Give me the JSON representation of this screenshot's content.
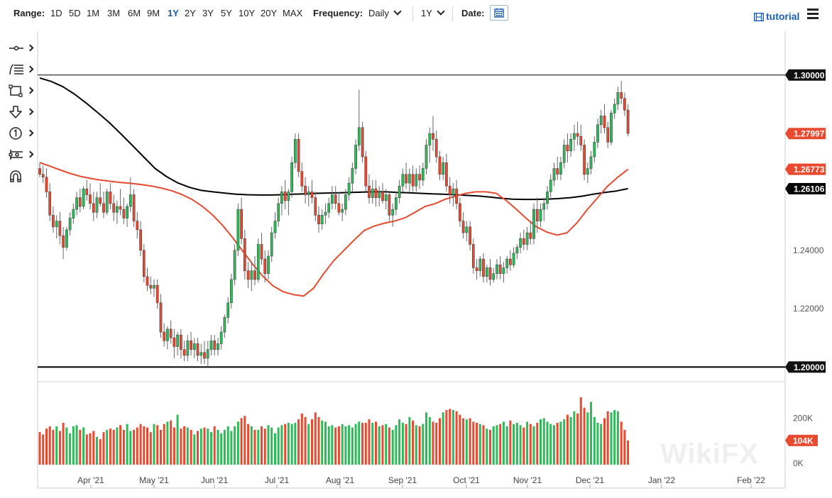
{
  "toolbar": {
    "range_label": "Range:",
    "ranges": [
      "1D",
      "5D",
      "1M",
      "3M",
      "6M",
      "9M",
      "1Y",
      "2Y",
      "3Y",
      "5Y",
      "10Y",
      "20Y",
      "MAX"
    ],
    "active_range": "1Y",
    "frequency_label": "Frequency:",
    "frequency_value": "Daily",
    "period_value": "1Y",
    "date_label": "Date:",
    "tutorial_label": "tutorial",
    "icons": {
      "date": "calendar-icon",
      "tutorial": "film-icon",
      "menu": "hamburger-menu-icon"
    }
  },
  "sidebar": {
    "tools": [
      {
        "name": "line-tool-icon"
      },
      {
        "name": "fibonacci-tool-icon"
      },
      {
        "name": "rectangle-tool-icon"
      },
      {
        "name": "arrow-down-tool-icon"
      },
      {
        "name": "annotation-tool-icon"
      },
      {
        "name": "measure-tool-icon"
      },
      {
        "name": "magnet-tool-icon"
      }
    ]
  },
  "watermark": "WikiFX",
  "chart_data": {
    "type": "candlestick",
    "x_labels": [
      "Apr '21",
      "May '21",
      "Jun '21",
      "Jul '21",
      "Aug '21",
      "Sep '21",
      "Oct '21",
      "Nov '21",
      "Dec '21",
      "Jan '22",
      "Feb '22"
    ],
    "price_axis": {
      "ticks": [
        "1.24000",
        "1.22000"
      ],
      "range": [
        1.195,
        1.315
      ]
    },
    "horizontal_lines": [
      {
        "value": 1.3,
        "label": "1.30000",
        "color": "#000000"
      },
      {
        "value": 1.2,
        "label": "1.20000",
        "color": "#000000"
      }
    ],
    "last_labels": [
      {
        "label": "1.27997",
        "value": 1.27997,
        "color": "#e8492f",
        "series": "price"
      },
      {
        "label": "1.26773",
        "value": 1.26773,
        "color": "#e8492f",
        "series": "ma50"
      },
      {
        "label": "1.26106",
        "value": 1.26106,
        "color": "#000000",
        "series": "ma200"
      }
    ],
    "candles": [
      [
        1.268,
        1.27,
        1.265,
        1.266
      ],
      [
        1.266,
        1.269,
        1.263,
        1.265
      ],
      [
        1.265,
        1.268,
        1.258,
        1.26
      ],
      [
        1.26,
        1.263,
        1.25,
        1.252
      ],
      [
        1.252,
        1.255,
        1.246,
        1.248
      ],
      [
        1.248,
        1.252,
        1.244,
        1.25
      ],
      [
        1.25,
        1.253,
        1.242,
        1.245
      ],
      [
        1.245,
        1.248,
        1.237,
        1.241
      ],
      [
        1.241,
        1.248,
        1.24,
        1.247
      ],
      [
        1.247,
        1.253,
        1.245,
        1.251
      ],
      [
        1.251,
        1.256,
        1.249,
        1.254
      ],
      [
        1.254,
        1.26,
        1.252,
        1.258
      ],
      [
        1.258,
        1.261,
        1.253,
        1.255
      ],
      [
        1.255,
        1.262,
        1.254,
        1.261
      ],
      [
        1.261,
        1.264,
        1.257,
        1.259
      ],
      [
        1.259,
        1.263,
        1.254,
        1.256
      ],
      [
        1.256,
        1.26,
        1.25,
        1.253
      ],
      [
        1.253,
        1.26,
        1.251,
        1.258
      ],
      [
        1.258,
        1.263,
        1.255,
        1.256
      ],
      [
        1.256,
        1.26,
        1.251,
        1.253
      ],
      [
        1.253,
        1.261,
        1.252,
        1.26
      ],
      [
        1.26,
        1.263,
        1.254,
        1.256
      ],
      [
        1.256,
        1.259,
        1.25,
        1.253
      ],
      [
        1.253,
        1.257,
        1.249,
        1.255
      ],
      [
        1.255,
        1.261,
        1.252,
        1.254
      ],
      [
        1.254,
        1.258,
        1.249,
        1.251
      ],
      [
        1.251,
        1.256,
        1.248,
        1.255
      ],
      [
        1.255,
        1.265,
        1.253,
        1.259
      ],
      [
        1.259,
        1.261,
        1.248,
        1.25
      ],
      [
        1.25,
        1.253,
        1.244,
        1.247
      ],
      [
        1.247,
        1.25,
        1.238,
        1.24
      ],
      [
        1.24,
        1.242,
        1.229,
        1.231
      ],
      [
        1.231,
        1.234,
        1.226,
        1.228
      ],
      [
        1.228,
        1.231,
        1.225,
        1.227
      ],
      [
        1.227,
        1.23,
        1.224,
        1.228
      ],
      [
        1.228,
        1.23,
        1.22,
        1.222
      ],
      [
        1.222,
        1.225,
        1.21,
        1.212
      ],
      [
        1.212,
        1.215,
        1.207,
        1.209
      ],
      [
        1.209,
        1.214,
        1.206,
        1.213
      ],
      [
        1.213,
        1.216,
        1.208,
        1.21
      ],
      [
        1.21,
        1.213,
        1.203,
        1.207
      ],
      [
        1.207,
        1.212,
        1.204,
        1.211
      ],
      [
        1.211,
        1.213,
        1.203,
        1.206
      ],
      [
        1.206,
        1.209,
        1.202,
        1.204
      ],
      [
        1.204,
        1.211,
        1.202,
        1.209
      ],
      [
        1.209,
        1.212,
        1.204,
        1.206
      ],
      [
        1.206,
        1.21,
        1.203,
        1.208
      ],
      [
        1.208,
        1.21,
        1.202,
        1.204
      ],
      [
        1.204,
        1.208,
        1.201,
        1.205
      ],
      [
        1.205,
        1.209,
        1.201,
        1.203
      ],
      [
        1.203,
        1.209,
        1.2,
        1.206
      ],
      [
        1.206,
        1.211,
        1.204,
        1.209
      ],
      [
        1.209,
        1.211,
        1.204,
        1.206
      ],
      [
        1.206,
        1.21,
        1.204,
        1.208
      ],
      [
        1.208,
        1.214,
        1.206,
        1.212
      ],
      [
        1.212,
        1.218,
        1.21,
        1.217
      ],
      [
        1.217,
        1.224,
        1.215,
        1.222
      ],
      [
        1.222,
        1.232,
        1.22,
        1.23
      ],
      [
        1.23,
        1.242,
        1.228,
        1.24
      ],
      [
        1.24,
        1.256,
        1.238,
        1.254
      ],
      [
        1.254,
        1.258,
        1.242,
        1.244
      ],
      [
        1.244,
        1.247,
        1.23,
        1.233
      ],
      [
        1.233,
        1.236,
        1.227,
        1.23
      ],
      [
        1.23,
        1.236,
        1.226,
        1.233
      ],
      [
        1.233,
        1.238,
        1.228,
        1.23
      ],
      [
        1.23,
        1.244,
        1.229,
        1.242
      ],
      [
        1.242,
        1.246,
        1.235,
        1.237
      ],
      [
        1.237,
        1.24,
        1.229,
        1.232
      ],
      [
        1.232,
        1.24,
        1.23,
        1.238
      ],
      [
        1.238,
        1.248,
        1.236,
        1.246
      ],
      [
        1.246,
        1.253,
        1.244,
        1.25
      ],
      [
        1.25,
        1.258,
        1.248,
        1.256
      ],
      [
        1.256,
        1.262,
        1.252,
        1.26
      ],
      [
        1.26,
        1.264,
        1.254,
        1.257
      ],
      [
        1.257,
        1.261,
        1.252,
        1.26
      ],
      [
        1.26,
        1.272,
        1.258,
        1.27
      ],
      [
        1.27,
        1.28,
        1.268,
        1.278
      ],
      [
        1.278,
        1.28,
        1.265,
        1.267
      ],
      [
        1.267,
        1.27,
        1.26,
        1.262
      ],
      [
        1.262,
        1.265,
        1.256,
        1.259
      ],
      [
        1.259,
        1.262,
        1.255,
        1.26
      ],
      [
        1.26,
        1.264,
        1.256,
        1.258
      ],
      [
        1.258,
        1.26,
        1.25,
        1.252
      ],
      [
        1.252,
        1.255,
        1.246,
        1.249
      ],
      [
        1.249,
        1.254,
        1.247,
        1.252
      ],
      [
        1.252,
        1.256,
        1.249,
        1.253
      ],
      [
        1.253,
        1.258,
        1.251,
        1.256
      ],
      [
        1.256,
        1.262,
        1.254,
        1.259
      ],
      [
        1.259,
        1.262,
        1.254,
        1.256
      ],
      [
        1.256,
        1.26,
        1.252,
        1.253
      ],
      [
        1.253,
        1.256,
        1.25,
        1.254
      ],
      [
        1.254,
        1.261,
        1.252,
        1.259
      ],
      [
        1.259,
        1.265,
        1.257,
        1.263
      ],
      [
        1.263,
        1.27,
        1.26,
        1.268
      ],
      [
        1.268,
        1.278,
        1.266,
        1.276
      ],
      [
        1.276,
        1.295,
        1.274,
        1.282
      ],
      [
        1.282,
        1.284,
        1.27,
        1.272
      ],
      [
        1.272,
        1.274,
        1.26,
        1.262
      ],
      [
        1.262,
        1.266,
        1.256,
        1.258
      ],
      [
        1.258,
        1.264,
        1.256,
        1.261
      ],
      [
        1.261,
        1.264,
        1.255,
        1.258
      ],
      [
        1.258,
        1.262,
        1.255,
        1.26
      ],
      [
        1.26,
        1.263,
        1.256,
        1.257
      ],
      [
        1.257,
        1.261,
        1.254,
        1.259
      ],
      [
        1.259,
        1.26,
        1.25,
        1.252
      ],
      [
        1.252,
        1.256,
        1.248,
        1.254
      ],
      [
        1.254,
        1.26,
        1.252,
        1.258
      ],
      [
        1.258,
        1.264,
        1.256,
        1.262
      ],
      [
        1.262,
        1.268,
        1.26,
        1.266
      ],
      [
        1.266,
        1.27,
        1.261,
        1.263
      ],
      [
        1.263,
        1.268,
        1.26,
        1.266
      ],
      [
        1.266,
        1.269,
        1.26,
        1.262
      ],
      [
        1.262,
        1.268,
        1.26,
        1.266
      ],
      [
        1.266,
        1.269,
        1.261,
        1.264
      ],
      [
        1.264,
        1.27,
        1.262,
        1.268
      ],
      [
        1.268,
        1.278,
        1.266,
        1.276
      ],
      [
        1.276,
        1.282,
        1.27,
        1.28
      ],
      [
        1.28,
        1.286,
        1.274,
        1.278
      ],
      [
        1.278,
        1.281,
        1.27,
        1.272
      ],
      [
        1.272,
        1.274,
        1.264,
        1.266
      ],
      [
        1.266,
        1.272,
        1.264,
        1.27
      ],
      [
        1.27,
        1.273,
        1.26,
        1.262
      ],
      [
        1.262,
        1.265,
        1.256,
        1.259
      ],
      [
        1.259,
        1.263,
        1.255,
        1.261
      ],
      [
        1.261,
        1.264,
        1.254,
        1.256
      ],
      [
        1.256,
        1.258,
        1.248,
        1.25
      ],
      [
        1.25,
        1.253,
        1.244,
        1.246
      ],
      [
        1.246,
        1.25,
        1.243,
        1.248
      ],
      [
        1.248,
        1.25,
        1.24,
        1.242
      ],
      [
        1.242,
        1.244,
        1.232,
        1.234
      ],
      [
        1.234,
        1.237,
        1.23,
        1.233
      ],
      [
        1.233,
        1.238,
        1.231,
        1.237
      ],
      [
        1.237,
        1.239,
        1.229,
        1.231
      ],
      [
        1.231,
        1.235,
        1.229,
        1.234
      ],
      [
        1.234,
        1.237,
        1.228,
        1.23
      ],
      [
        1.23,
        1.234,
        1.229,
        1.232
      ],
      [
        1.232,
        1.237,
        1.23,
        1.235
      ],
      [
        1.235,
        1.238,
        1.23,
        1.232
      ],
      [
        1.232,
        1.236,
        1.229,
        1.234
      ],
      [
        1.234,
        1.238,
        1.232,
        1.237
      ],
      [
        1.237,
        1.24,
        1.233,
        1.235
      ],
      [
        1.235,
        1.241,
        1.234,
        1.239
      ],
      [
        1.239,
        1.242,
        1.237,
        1.241
      ],
      [
        1.241,
        1.246,
        1.239,
        1.244
      ],
      [
        1.244,
        1.247,
        1.24,
        1.242
      ],
      [
        1.242,
        1.248,
        1.24,
        1.246
      ],
      [
        1.246,
        1.25,
        1.242,
        1.244
      ],
      [
        1.244,
        1.256,
        1.242,
        1.254
      ],
      [
        1.254,
        1.258,
        1.246,
        1.25
      ],
      [
        1.25,
        1.256,
        1.248,
        1.254
      ],
      [
        1.254,
        1.258,
        1.25,
        1.256
      ],
      [
        1.256,
        1.262,
        1.254,
        1.26
      ],
      [
        1.26,
        1.266,
        1.258,
        1.264
      ],
      [
        1.264,
        1.27,
        1.262,
        1.268
      ],
      [
        1.268,
        1.272,
        1.264,
        1.266
      ],
      [
        1.266,
        1.272,
        1.264,
        1.27
      ],
      [
        1.27,
        1.278,
        1.268,
        1.276
      ],
      [
        1.276,
        1.28,
        1.27,
        1.274
      ],
      [
        1.274,
        1.28,
        1.272,
        1.278
      ],
      [
        1.278,
        1.283,
        1.274,
        1.28
      ],
      [
        1.28,
        1.284,
        1.276,
        1.279
      ],
      [
        1.279,
        1.283,
        1.274,
        1.276
      ],
      [
        1.276,
        1.278,
        1.264,
        1.266
      ],
      [
        1.266,
        1.27,
        1.263,
        1.268
      ],
      [
        1.268,
        1.274,
        1.266,
        1.272
      ],
      [
        1.272,
        1.279,
        1.27,
        1.277
      ],
      [
        1.277,
        1.285,
        1.275,
        1.283
      ],
      [
        1.283,
        1.288,
        1.28,
        1.286
      ],
      [
        1.286,
        1.29,
        1.28,
        1.282
      ],
      [
        1.282,
        1.284,
        1.275,
        1.277
      ],
      [
        1.277,
        1.288,
        1.276,
        1.287
      ],
      [
        1.287,
        1.292,
        1.285,
        1.29
      ],
      [
        1.29,
        1.296,
        1.288,
        1.294
      ],
      [
        1.294,
        1.298,
        1.29,
        1.292
      ],
      [
        1.292,
        1.294,
        1.286,
        1.288
      ],
      [
        1.288,
        1.29,
        1.279,
        1.28
      ]
    ],
    "ma50": [
      1.27,
      1.2688,
      1.2675,
      1.2663,
      1.2653,
      1.2646,
      1.264,
      1.2636,
      1.2632,
      1.2629,
      1.2625,
      1.262,
      1.2613,
      1.2604,
      1.2591,
      1.2574,
      1.2551,
      1.2522,
      1.2486,
      1.2444,
      1.2398,
      1.2352,
      1.2311,
      1.2278,
      1.2258,
      1.2248,
      1.2243,
      1.227,
      1.232,
      1.2365,
      1.24,
      1.2435,
      1.2468,
      1.2483,
      1.2493,
      1.25,
      1.2511,
      1.253,
      1.255,
      1.256,
      1.2575,
      1.2585,
      1.2595,
      1.26,
      1.26,
      1.2595,
      1.257,
      1.254,
      1.2508,
      1.248,
      1.2462,
      1.2452,
      1.246,
      1.2495,
      1.254,
      1.258,
      1.262,
      1.265,
      1.2677
    ],
    "ma200": [
      1.299,
      1.2978,
      1.296,
      1.2935,
      1.2905,
      1.2872,
      1.2838,
      1.28,
      1.276,
      1.272,
      1.268,
      1.2652,
      1.263,
      1.2615,
      1.2605,
      1.26,
      1.2596,
      1.2592,
      1.259,
      1.2589,
      1.2589,
      1.259,
      1.2592,
      1.2593,
      1.2595,
      1.2596,
      1.2597,
      1.2598,
      1.2599,
      1.26,
      1.26,
      1.2598,
      1.2597,
      1.2595,
      1.2593,
      1.2592,
      1.259,
      1.2588,
      1.2586,
      1.2582,
      1.2578,
      1.2575,
      1.2574,
      1.2574,
      1.2575,
      1.2577,
      1.258,
      1.2585,
      1.2592,
      1.2598,
      1.2603,
      1.2611
    ],
    "volume_axis": {
      "ticks": [
        "200K",
        "0K"
      ],
      "max": 290000,
      "last_label": "104K",
      "last_color": "#e8492f"
    },
    "volumes": [
      140000,
      130000,
      155000,
      165000,
      150000,
      165000,
      145000,
      180000,
      160000,
      135000,
      165000,
      170000,
      150000,
      160000,
      130000,
      135000,
      145000,
      120000,
      110000,
      140000,
      150000,
      155000,
      150000,
      160000,
      170000,
      150000,
      175000,
      145000,
      150000,
      160000,
      175000,
      165000,
      160000,
      140000,
      175000,
      170000,
      150000,
      175000,
      185000,
      190000,
      160000,
      215000,
      155000,
      165000,
      160000,
      150000,
      130000,
      145000,
      155000,
      160000,
      155000,
      140000,
      165000,
      150000,
      135000,
      150000,
      165000,
      145000,
      165000,
      185000,
      200000,
      210000,
      175000,
      165000,
      150000,
      150000,
      165000,
      155000,
      170000,
      160000,
      135000,
      160000,
      170000,
      175000,
      180000,
      175000,
      180000,
      195000,
      220000,
      205000,
      175000,
      195000,
      225000,
      205000,
      190000,
      185000,
      165000,
      170000,
      160000,
      165000,
      175000,
      165000,
      170000,
      160000,
      175000,
      185000,
      180000,
      180000,
      195000,
      180000,
      185000,
      165000,
      170000,
      175000,
      160000,
      150000,
      170000,
      195000,
      180000,
      175000,
      205000,
      190000,
      170000,
      165000,
      175000,
      225000,
      205000,
      185000,
      180000,
      200000,
      225000,
      235000,
      240000,
      235000,
      230000,
      215000,
      200000,
      195000,
      200000,
      185000,
      180000,
      175000,
      170000,
      155000,
      150000,
      165000,
      170000,
      175000,
      185000,
      165000,
      190000,
      175000,
      180000,
      170000,
      160000,
      185000,
      175000,
      165000,
      180000,
      195000,
      200000,
      185000,
      175000,
      170000,
      180000,
      185000,
      195000,
      215000,
      205000,
      230000,
      220000,
      290000,
      245000,
      225000,
      270000,
      205000,
      180000,
      175000,
      200000,
      230000,
      225000,
      235000,
      230000,
      185000,
      150000,
      104000
    ]
  }
}
